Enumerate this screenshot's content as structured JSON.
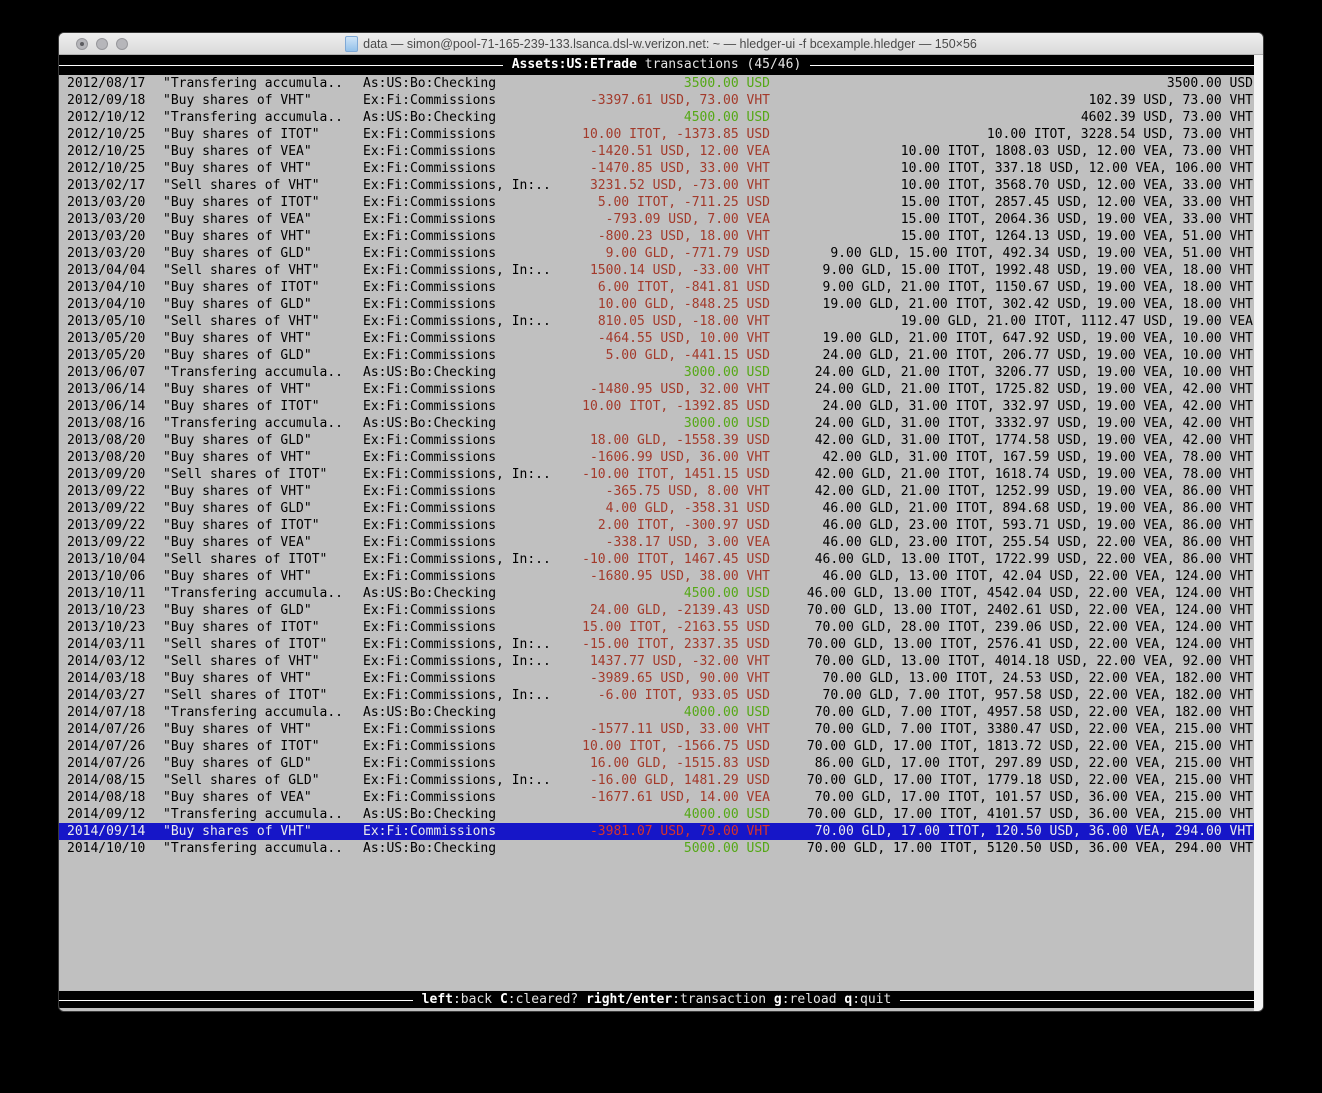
{
  "window": {
    "title": "data — simon@pool-71-165-239-133.lsanca.dsl-w.verizon.net: ~ — hledger-ui -f bcexample.hledger — 150×56"
  },
  "header": {
    "account_bold": "Assets:US:ETrade",
    "rest": " transactions (45/46)"
  },
  "footer": {
    "keys": [
      {
        "key": "left",
        "desc": ":back"
      },
      {
        "key": "C",
        "desc": ":cleared?"
      },
      {
        "key": "right/enter",
        "desc": ":transaction"
      },
      {
        "key": "g",
        "desc": ":reload"
      },
      {
        "key": "q",
        "desc": ":quit"
      }
    ]
  },
  "colors": {
    "terminal_bg": "#c0c0c0",
    "positive_amount": "#55a816",
    "negative_amount": "#a33a2b",
    "selection_bg": "#1616c8",
    "bar_bg": "#000000"
  },
  "register": {
    "rows": [
      {
        "date": "2012/08/17",
        "description": "\"Transfering accumula..",
        "account": "As:US:Bo:Checking",
        "amount": "3500.00 USD",
        "amount_color": "green",
        "balance": "3500.00 USD",
        "selected": false
      },
      {
        "date": "2012/09/18",
        "description": "\"Buy shares of VHT\"",
        "account": "Ex:Fi:Commissions",
        "amount": "-3397.61 USD, 73.00 VHT",
        "amount_color": "red",
        "balance": "102.39 USD, 73.00 VHT",
        "selected": false
      },
      {
        "date": "2012/10/12",
        "description": "\"Transfering accumula..",
        "account": "As:US:Bo:Checking",
        "amount": "4500.00 USD",
        "amount_color": "green",
        "balance": "4602.39 USD, 73.00 VHT",
        "selected": false
      },
      {
        "date": "2012/10/25",
        "description": "\"Buy shares of ITOT\"",
        "account": "Ex:Fi:Commissions",
        "amount": "10.00 ITOT, -1373.85 USD",
        "amount_color": "red",
        "balance": "10.00 ITOT, 3228.54 USD, 73.00 VHT",
        "selected": false
      },
      {
        "date": "2012/10/25",
        "description": "\"Buy shares of VEA\"",
        "account": "Ex:Fi:Commissions",
        "amount": "-1420.51 USD, 12.00 VEA",
        "amount_color": "red",
        "balance": "10.00 ITOT, 1808.03 USD, 12.00 VEA, 73.00 VHT",
        "selected": false
      },
      {
        "date": "2012/10/25",
        "description": "\"Buy shares of VHT\"",
        "account": "Ex:Fi:Commissions",
        "amount": "-1470.85 USD, 33.00 VHT",
        "amount_color": "red",
        "balance": "10.00 ITOT, 337.18 USD, 12.00 VEA, 106.00 VHT",
        "selected": false
      },
      {
        "date": "2013/02/17",
        "description": "\"Sell shares of VHT\"",
        "account": "Ex:Fi:Commissions, In:..",
        "amount": "3231.52 USD, -73.00 VHT",
        "amount_color": "red",
        "balance": "10.00 ITOT, 3568.70 USD, 12.00 VEA, 33.00 VHT",
        "selected": false
      },
      {
        "date": "2013/03/20",
        "description": "\"Buy shares of ITOT\"",
        "account": "Ex:Fi:Commissions",
        "amount": "5.00 ITOT, -711.25 USD",
        "amount_color": "red",
        "balance": "15.00 ITOT, 2857.45 USD, 12.00 VEA, 33.00 VHT",
        "selected": false
      },
      {
        "date": "2013/03/20",
        "description": "\"Buy shares of VEA\"",
        "account": "Ex:Fi:Commissions",
        "amount": "-793.09 USD, 7.00 VEA",
        "amount_color": "red",
        "balance": "15.00 ITOT, 2064.36 USD, 19.00 VEA, 33.00 VHT",
        "selected": false
      },
      {
        "date": "2013/03/20",
        "description": "\"Buy shares of VHT\"",
        "account": "Ex:Fi:Commissions",
        "amount": "-800.23 USD, 18.00 VHT",
        "amount_color": "red",
        "balance": "15.00 ITOT, 1264.13 USD, 19.00 VEA, 51.00 VHT",
        "selected": false
      },
      {
        "date": "2013/03/20",
        "description": "\"Buy shares of GLD\"",
        "account": "Ex:Fi:Commissions",
        "amount": "9.00 GLD, -771.79 USD",
        "amount_color": "red",
        "balance": "9.00 GLD, 15.00 ITOT, 492.34 USD, 19.00 VEA, 51.00 VHT",
        "selected": false
      },
      {
        "date": "2013/04/04",
        "description": "\"Sell shares of VHT\"",
        "account": "Ex:Fi:Commissions, In:..",
        "amount": "1500.14 USD, -33.00 VHT",
        "amount_color": "red",
        "balance": "9.00 GLD, 15.00 ITOT, 1992.48 USD, 19.00 VEA, 18.00 VHT",
        "selected": false
      },
      {
        "date": "2013/04/10",
        "description": "\"Buy shares of ITOT\"",
        "account": "Ex:Fi:Commissions",
        "amount": "6.00 ITOT, -841.81 USD",
        "amount_color": "red",
        "balance": "9.00 GLD, 21.00 ITOT, 1150.67 USD, 19.00 VEA, 18.00 VHT",
        "selected": false
      },
      {
        "date": "2013/04/10",
        "description": "\"Buy shares of GLD\"",
        "account": "Ex:Fi:Commissions",
        "amount": "10.00 GLD, -848.25 USD",
        "amount_color": "red",
        "balance": "19.00 GLD, 21.00 ITOT, 302.42 USD, 19.00 VEA, 18.00 VHT",
        "selected": false
      },
      {
        "date": "2013/05/10",
        "description": "\"Sell shares of VHT\"",
        "account": "Ex:Fi:Commissions, In:..",
        "amount": "810.05 USD, -18.00 VHT",
        "amount_color": "red",
        "balance": "19.00 GLD, 21.00 ITOT, 1112.47 USD, 19.00 VEA",
        "selected": false
      },
      {
        "date": "2013/05/20",
        "description": "\"Buy shares of VHT\"",
        "account": "Ex:Fi:Commissions",
        "amount": "-464.55 USD, 10.00 VHT",
        "amount_color": "red",
        "balance": "19.00 GLD, 21.00 ITOT, 647.92 USD, 19.00 VEA, 10.00 VHT",
        "selected": false
      },
      {
        "date": "2013/05/20",
        "description": "\"Buy shares of GLD\"",
        "account": "Ex:Fi:Commissions",
        "amount": "5.00 GLD, -441.15 USD",
        "amount_color": "red",
        "balance": "24.00 GLD, 21.00 ITOT, 206.77 USD, 19.00 VEA, 10.00 VHT",
        "selected": false
      },
      {
        "date": "2013/06/07",
        "description": "\"Transfering accumula..",
        "account": "As:US:Bo:Checking",
        "amount": "3000.00 USD",
        "amount_color": "green",
        "balance": "24.00 GLD, 21.00 ITOT, 3206.77 USD, 19.00 VEA, 10.00 VHT",
        "selected": false
      },
      {
        "date": "2013/06/14",
        "description": "\"Buy shares of VHT\"",
        "account": "Ex:Fi:Commissions",
        "amount": "-1480.95 USD, 32.00 VHT",
        "amount_color": "red",
        "balance": "24.00 GLD, 21.00 ITOT, 1725.82 USD, 19.00 VEA, 42.00 VHT",
        "selected": false
      },
      {
        "date": "2013/06/14",
        "description": "\"Buy shares of ITOT\"",
        "account": "Ex:Fi:Commissions",
        "amount": "10.00 ITOT, -1392.85 USD",
        "amount_color": "red",
        "balance": "24.00 GLD, 31.00 ITOT, 332.97 USD, 19.00 VEA, 42.00 VHT",
        "selected": false
      },
      {
        "date": "2013/08/16",
        "description": "\"Transfering accumula..",
        "account": "As:US:Bo:Checking",
        "amount": "3000.00 USD",
        "amount_color": "green",
        "balance": "24.00 GLD, 31.00 ITOT, 3332.97 USD, 19.00 VEA, 42.00 VHT",
        "selected": false
      },
      {
        "date": "2013/08/20",
        "description": "\"Buy shares of GLD\"",
        "account": "Ex:Fi:Commissions",
        "amount": "18.00 GLD, -1558.39 USD",
        "amount_color": "red",
        "balance": "42.00 GLD, 31.00 ITOT, 1774.58 USD, 19.00 VEA, 42.00 VHT",
        "selected": false
      },
      {
        "date": "2013/08/20",
        "description": "\"Buy shares of VHT\"",
        "account": "Ex:Fi:Commissions",
        "amount": "-1606.99 USD, 36.00 VHT",
        "amount_color": "red",
        "balance": "42.00 GLD, 31.00 ITOT, 167.59 USD, 19.00 VEA, 78.00 VHT",
        "selected": false
      },
      {
        "date": "2013/09/20",
        "description": "\"Sell shares of ITOT\"",
        "account": "Ex:Fi:Commissions, In:..",
        "amount": "-10.00 ITOT, 1451.15 USD",
        "amount_color": "red",
        "balance": "42.00 GLD, 21.00 ITOT, 1618.74 USD, 19.00 VEA, 78.00 VHT",
        "selected": false
      },
      {
        "date": "2013/09/22",
        "description": "\"Buy shares of VHT\"",
        "account": "Ex:Fi:Commissions",
        "amount": "-365.75 USD, 8.00 VHT",
        "amount_color": "red",
        "balance": "42.00 GLD, 21.00 ITOT, 1252.99 USD, 19.00 VEA, 86.00 VHT",
        "selected": false
      },
      {
        "date": "2013/09/22",
        "description": "\"Buy shares of GLD\"",
        "account": "Ex:Fi:Commissions",
        "amount": "4.00 GLD, -358.31 USD",
        "amount_color": "red",
        "balance": "46.00 GLD, 21.00 ITOT, 894.68 USD, 19.00 VEA, 86.00 VHT",
        "selected": false
      },
      {
        "date": "2013/09/22",
        "description": "\"Buy shares of ITOT\"",
        "account": "Ex:Fi:Commissions",
        "amount": "2.00 ITOT, -300.97 USD",
        "amount_color": "red",
        "balance": "46.00 GLD, 23.00 ITOT, 593.71 USD, 19.00 VEA, 86.00 VHT",
        "selected": false
      },
      {
        "date": "2013/09/22",
        "description": "\"Buy shares of VEA\"",
        "account": "Ex:Fi:Commissions",
        "amount": "-338.17 USD, 3.00 VEA",
        "amount_color": "red",
        "balance": "46.00 GLD, 23.00 ITOT, 255.54 USD, 22.00 VEA, 86.00 VHT",
        "selected": false
      },
      {
        "date": "2013/10/04",
        "description": "\"Sell shares of ITOT\"",
        "account": "Ex:Fi:Commissions, In:..",
        "amount": "-10.00 ITOT, 1467.45 USD",
        "amount_color": "red",
        "balance": "46.00 GLD, 13.00 ITOT, 1722.99 USD, 22.00 VEA, 86.00 VHT",
        "selected": false
      },
      {
        "date": "2013/10/06",
        "description": "\"Buy shares of VHT\"",
        "account": "Ex:Fi:Commissions",
        "amount": "-1680.95 USD, 38.00 VHT",
        "amount_color": "red",
        "balance": "46.00 GLD, 13.00 ITOT, 42.04 USD, 22.00 VEA, 124.00 VHT",
        "selected": false
      },
      {
        "date": "2013/10/11",
        "description": "\"Transfering accumula..",
        "account": "As:US:Bo:Checking",
        "amount": "4500.00 USD",
        "amount_color": "green",
        "balance": "46.00 GLD, 13.00 ITOT, 4542.04 USD, 22.00 VEA, 124.00 VHT",
        "selected": false
      },
      {
        "date": "2013/10/23",
        "description": "\"Buy shares of GLD\"",
        "account": "Ex:Fi:Commissions",
        "amount": "24.00 GLD, -2139.43 USD",
        "amount_color": "red",
        "balance": "70.00 GLD, 13.00 ITOT, 2402.61 USD, 22.00 VEA, 124.00 VHT",
        "selected": false
      },
      {
        "date": "2013/10/23",
        "description": "\"Buy shares of ITOT\"",
        "account": "Ex:Fi:Commissions",
        "amount": "15.00 ITOT, -2163.55 USD",
        "amount_color": "red",
        "balance": "70.00 GLD, 28.00 ITOT, 239.06 USD, 22.00 VEA, 124.00 VHT",
        "selected": false
      },
      {
        "date": "2014/03/11",
        "description": "\"Sell shares of ITOT\"",
        "account": "Ex:Fi:Commissions, In:..",
        "amount": "-15.00 ITOT, 2337.35 USD",
        "amount_color": "red",
        "balance": "70.00 GLD, 13.00 ITOT, 2576.41 USD, 22.00 VEA, 124.00 VHT",
        "selected": false
      },
      {
        "date": "2014/03/12",
        "description": "\"Sell shares of VHT\"",
        "account": "Ex:Fi:Commissions, In:..",
        "amount": "1437.77 USD, -32.00 VHT",
        "amount_color": "red",
        "balance": "70.00 GLD, 13.00 ITOT, 4014.18 USD, 22.00 VEA, 92.00 VHT",
        "selected": false
      },
      {
        "date": "2014/03/18",
        "description": "\"Buy shares of VHT\"",
        "account": "Ex:Fi:Commissions",
        "amount": "-3989.65 USD, 90.00 VHT",
        "amount_color": "red",
        "balance": "70.00 GLD, 13.00 ITOT, 24.53 USD, 22.00 VEA, 182.00 VHT",
        "selected": false
      },
      {
        "date": "2014/03/27",
        "description": "\"Sell shares of ITOT\"",
        "account": "Ex:Fi:Commissions, In:..",
        "amount": "-6.00 ITOT, 933.05 USD",
        "amount_color": "red",
        "balance": "70.00 GLD, 7.00 ITOT, 957.58 USD, 22.00 VEA, 182.00 VHT",
        "selected": false
      },
      {
        "date": "2014/07/18",
        "description": "\"Transfering accumula..",
        "account": "As:US:Bo:Checking",
        "amount": "4000.00 USD",
        "amount_color": "green",
        "balance": "70.00 GLD, 7.00 ITOT, 4957.58 USD, 22.00 VEA, 182.00 VHT",
        "selected": false
      },
      {
        "date": "2014/07/26",
        "description": "\"Buy shares of VHT\"",
        "account": "Ex:Fi:Commissions",
        "amount": "-1577.11 USD, 33.00 VHT",
        "amount_color": "red",
        "balance": "70.00 GLD, 7.00 ITOT, 3380.47 USD, 22.00 VEA, 215.00 VHT",
        "selected": false
      },
      {
        "date": "2014/07/26",
        "description": "\"Buy shares of ITOT\"",
        "account": "Ex:Fi:Commissions",
        "amount": "10.00 ITOT, -1566.75 USD",
        "amount_color": "red",
        "balance": "70.00 GLD, 17.00 ITOT, 1813.72 USD, 22.00 VEA, 215.00 VHT",
        "selected": false
      },
      {
        "date": "2014/07/26",
        "description": "\"Buy shares of GLD\"",
        "account": "Ex:Fi:Commissions",
        "amount": "16.00 GLD, -1515.83 USD",
        "amount_color": "red",
        "balance": "86.00 GLD, 17.00 ITOT, 297.89 USD, 22.00 VEA, 215.00 VHT",
        "selected": false
      },
      {
        "date": "2014/08/15",
        "description": "\"Sell shares of GLD\"",
        "account": "Ex:Fi:Commissions, In:..",
        "amount": "-16.00 GLD, 1481.29 USD",
        "amount_color": "red",
        "balance": "70.00 GLD, 17.00 ITOT, 1779.18 USD, 22.00 VEA, 215.00 VHT",
        "selected": false
      },
      {
        "date": "2014/08/18",
        "description": "\"Buy shares of VEA\"",
        "account": "Ex:Fi:Commissions",
        "amount": "-1677.61 USD, 14.00 VEA",
        "amount_color": "red",
        "balance": "70.00 GLD, 17.00 ITOT, 101.57 USD, 36.00 VEA, 215.00 VHT",
        "selected": false
      },
      {
        "date": "2014/09/12",
        "description": "\"Transfering accumula..",
        "account": "As:US:Bo:Checking",
        "amount": "4000.00 USD",
        "amount_color": "green",
        "balance": "70.00 GLD, 17.00 ITOT, 4101.57 USD, 36.00 VEA, 215.00 VHT",
        "selected": false
      },
      {
        "date": "2014/09/14",
        "description": "\"Buy shares of VHT\"",
        "account": "Ex:Fi:Commissions",
        "amount": "-3981.07 USD, 79.00 VHT",
        "amount_color": "red",
        "balance": "70.00 GLD, 17.00 ITOT, 120.50 USD, 36.00 VEA, 294.00 VHT",
        "selected": true
      },
      {
        "date": "2014/10/10",
        "description": "\"Transfering accumula..",
        "account": "As:US:Bo:Checking",
        "amount": "5000.00 USD",
        "amount_color": "green",
        "balance": "70.00 GLD, 17.00 ITOT, 5120.50 USD, 36.00 VEA, 294.00 VHT",
        "selected": false
      }
    ]
  }
}
